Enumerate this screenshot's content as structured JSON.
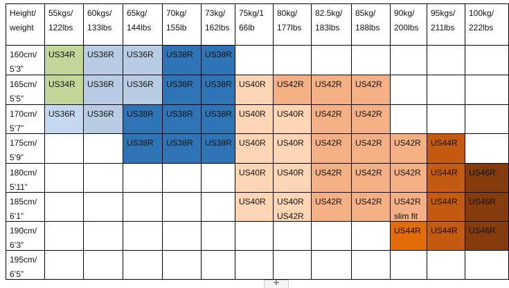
{
  "colors": {
    "light_green": "#c4d79b",
    "pale_blue": "#c5d9f1",
    "mid_blue": "#b8cce4",
    "blue": "#2f75b5",
    "pale_peach": "#fcd5b4",
    "salmon": "#f4b084",
    "orange_light": "#f4b084",
    "orange": "#e26b0a",
    "dark_orange": "#c55a11",
    "brown": "#843c0c"
  },
  "header": {
    "corner": [
      "Height/",
      "weight"
    ],
    "weights": [
      [
        "55kgs/",
        "122lbs"
      ],
      [
        "60kgs/",
        "133lbs"
      ],
      [
        "65kg/",
        "144lbs"
      ],
      [
        "70kg/",
        "155lb"
      ],
      [
        "73kg/",
        "162lbs"
      ],
      [
        "75kg/1",
        "66lb"
      ],
      [
        "80kg/",
        "177lbs"
      ],
      [
        "82.5kg/",
        "183lbs"
      ],
      [
        "85kg/",
        "188lbs"
      ],
      [
        "90kg/",
        "200lbs"
      ],
      [
        "95kgs/",
        "211lbs"
      ],
      [
        "100kg/",
        "222lbs"
      ]
    ]
  },
  "rows": [
    {
      "height": [
        "160cm/",
        "5’3”"
      ],
      "cells": [
        {
          "text": [
            "US34R"
          ],
          "color": "light_green"
        },
        {
          "text": [
            "US36R"
          ],
          "color": "mid_blue"
        },
        {
          "text": [
            "US36R"
          ],
          "color": "mid_blue"
        },
        {
          "text": [
            "US38R"
          ],
          "color": "blue"
        },
        {
          "text": [
            "US38R"
          ],
          "color": "blue"
        },
        {
          "text": [],
          "color": ""
        },
        {
          "text": [],
          "color": ""
        },
        {
          "text": [],
          "color": ""
        },
        {
          "text": [],
          "color": ""
        },
        {
          "text": [],
          "color": ""
        },
        {
          "text": [],
          "color": ""
        },
        {
          "text": [],
          "color": ""
        }
      ]
    },
    {
      "height": [
        "165cm/",
        "5’5”"
      ],
      "cells": [
        {
          "text": [
            "US34R"
          ],
          "color": "light_green"
        },
        {
          "text": [
            "US36R"
          ],
          "color": "mid_blue"
        },
        {
          "text": [
            "US36R"
          ],
          "color": "mid_blue"
        },
        {
          "text": [
            "US38R"
          ],
          "color": "blue"
        },
        {
          "text": [
            "US38R"
          ],
          "color": "blue"
        },
        {
          "text": [
            "US40R"
          ],
          "color": "pale_peach"
        },
        {
          "text": [
            "US42R"
          ],
          "color": "salmon"
        },
        {
          "text": [
            "US42R"
          ],
          "color": "salmon"
        },
        {
          "text": [
            "US42R"
          ],
          "color": "salmon"
        },
        {
          "text": [],
          "color": ""
        },
        {
          "text": [],
          "color": ""
        },
        {
          "text": [],
          "color": ""
        }
      ]
    },
    {
      "height": [
        "170cm/",
        "5’7”"
      ],
      "cells": [
        {
          "text": [
            "US36R"
          ],
          "color": "pale_blue"
        },
        {
          "text": [
            "US36R"
          ],
          "color": "mid_blue"
        },
        {
          "text": [
            "US38R"
          ],
          "color": "blue"
        },
        {
          "text": [
            "US38R"
          ],
          "color": "blue"
        },
        {
          "text": [
            "US38R"
          ],
          "color": "blue"
        },
        {
          "text": [
            "US40R"
          ],
          "color": "pale_peach"
        },
        {
          "text": [
            "US40R"
          ],
          "color": "pale_peach"
        },
        {
          "text": [
            "US42R"
          ],
          "color": "salmon"
        },
        {
          "text": [
            "US42R"
          ],
          "color": "salmon"
        },
        {
          "text": [],
          "color": ""
        },
        {
          "text": [],
          "color": ""
        },
        {
          "text": [],
          "color": ""
        }
      ]
    },
    {
      "height": [
        "175cm/",
        "5’9”"
      ],
      "cells": [
        {
          "text": [],
          "color": ""
        },
        {
          "text": [],
          "color": ""
        },
        {
          "text": [
            "US38R"
          ],
          "color": "blue"
        },
        {
          "text": [
            "US38R"
          ],
          "color": "blue"
        },
        {
          "text": [
            "US38R"
          ],
          "color": "blue"
        },
        {
          "text": [
            "US40R"
          ],
          "color": "pale_peach"
        },
        {
          "text": [
            "US40R"
          ],
          "color": "pale_peach"
        },
        {
          "text": [
            "US42R"
          ],
          "color": "salmon"
        },
        {
          "text": [
            "US42R"
          ],
          "color": "salmon"
        },
        {
          "text": [
            "US42R"
          ],
          "color": "salmon"
        },
        {
          "text": [
            "US44R"
          ],
          "color": "dark_orange"
        },
        {
          "text": [],
          "color": ""
        }
      ]
    },
    {
      "height": [
        "180cm/",
        "5’11”"
      ],
      "cells": [
        {
          "text": [],
          "color": ""
        },
        {
          "text": [],
          "color": ""
        },
        {
          "text": [],
          "color": ""
        },
        {
          "text": [],
          "color": ""
        },
        {
          "text": [],
          "color": ""
        },
        {
          "text": [
            "US40R"
          ],
          "color": "pale_peach"
        },
        {
          "text": [
            "US40R"
          ],
          "color": "pale_peach"
        },
        {
          "text": [
            "US42R"
          ],
          "color": "salmon"
        },
        {
          "text": [
            "US42R"
          ],
          "color": "salmon"
        },
        {
          "text": [
            "US42R"
          ],
          "color": "salmon"
        },
        {
          "text": [
            "US44R"
          ],
          "color": "dark_orange"
        },
        {
          "text": [
            "US46R"
          ],
          "color": "brown"
        }
      ]
    },
    {
      "height": [
        "185cm/",
        "6’1”"
      ],
      "cells": [
        {
          "text": [],
          "color": ""
        },
        {
          "text": [],
          "color": ""
        },
        {
          "text": [],
          "color": ""
        },
        {
          "text": [],
          "color": ""
        },
        {
          "text": [],
          "color": ""
        },
        {
          "text": [
            "US40R"
          ],
          "color": "pale_peach"
        },
        {
          "text": [
            "US40R",
            "US42R"
          ],
          "color": "pale_peach"
        },
        {
          "text": [
            "US42R"
          ],
          "color": "salmon"
        },
        {
          "text": [
            "US42R"
          ],
          "color": "salmon"
        },
        {
          "text": [
            "US42R",
            "slim fit"
          ],
          "color": "salmon"
        },
        {
          "text": [
            "US44R"
          ],
          "color": "dark_orange"
        },
        {
          "text": [
            "US46R"
          ],
          "color": "brown"
        }
      ]
    },
    {
      "height": [
        "190cm/",
        "6’3”"
      ],
      "cells": [
        {
          "text": [],
          "color": ""
        },
        {
          "text": [],
          "color": ""
        },
        {
          "text": [],
          "color": ""
        },
        {
          "text": [],
          "color": ""
        },
        {
          "text": [],
          "color": ""
        },
        {
          "text": [],
          "color": ""
        },
        {
          "text": [],
          "color": ""
        },
        {
          "text": [],
          "color": ""
        },
        {
          "text": [],
          "color": ""
        },
        {
          "text": [
            "US44R"
          ],
          "color": "orange"
        },
        {
          "text": [
            "US44R"
          ],
          "color": "dark_orange"
        },
        {
          "text": [
            "US46R"
          ],
          "color": "brown"
        }
      ]
    },
    {
      "height": [
        "195cm/",
        "6’5”"
      ],
      "cells": [
        {
          "text": [],
          "color": ""
        },
        {
          "text": [],
          "color": ""
        },
        {
          "text": [],
          "color": ""
        },
        {
          "text": [],
          "color": ""
        },
        {
          "text": [],
          "color": ""
        },
        {
          "text": [],
          "color": ""
        },
        {
          "text": [],
          "color": ""
        },
        {
          "text": [],
          "color": ""
        },
        {
          "text": [],
          "color": ""
        },
        {
          "text": [],
          "color": ""
        },
        {
          "text": [],
          "color": ""
        },
        {
          "text": [],
          "color": ""
        }
      ]
    }
  ],
  "table_handle": {
    "icon": "plus-icon",
    "glyph": "+"
  }
}
